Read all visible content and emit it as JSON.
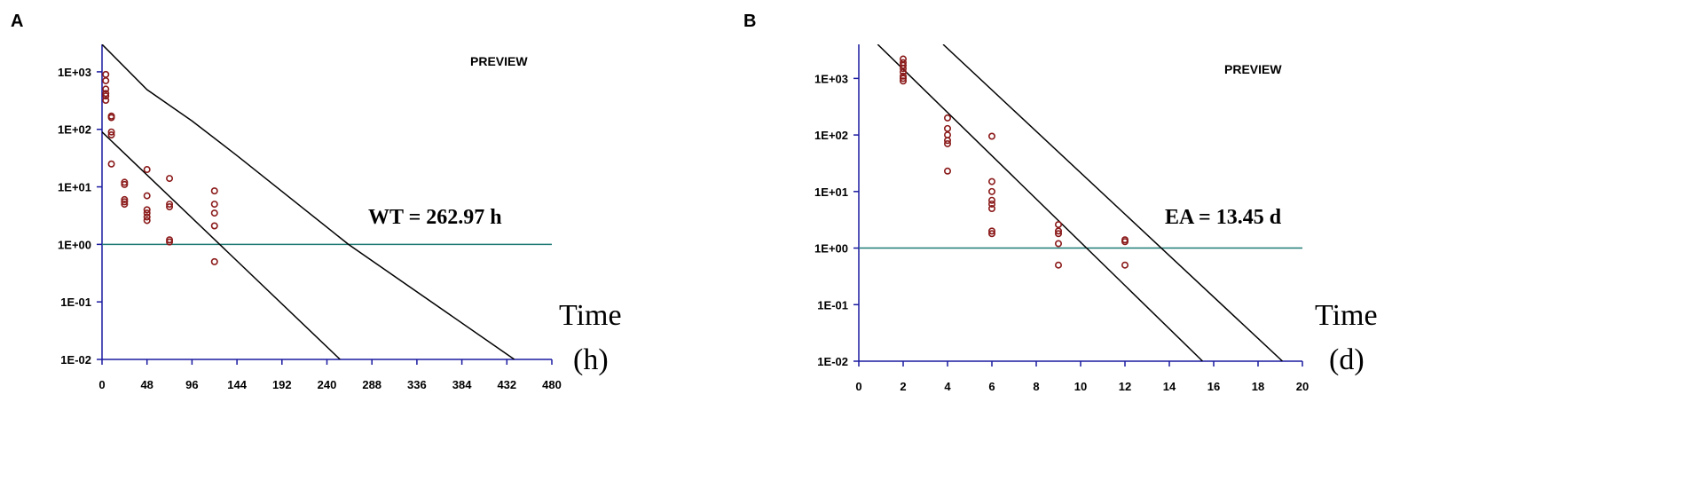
{
  "chart_data": [
    {
      "type": "scatter",
      "panel": "A",
      "watermark": "PREVIEW",
      "annotation": "WT = 262.97 h",
      "xlabel": [
        "Time",
        "(h)"
      ],
      "xlim": [
        0,
        480
      ],
      "xticks": [
        0,
        48,
        96,
        144,
        192,
        240,
        288,
        336,
        384,
        432,
        480
      ],
      "ylim": [
        0.01,
        3000
      ],
      "yscale": "log",
      "yticks": [
        {
          "value": 0.01,
          "label": "1E-02"
        },
        {
          "value": 0.1,
          "label": "1E-01"
        },
        {
          "value": 1,
          "label": "1E+00"
        },
        {
          "value": 10,
          "label": "1E+01"
        },
        {
          "value": 100,
          "label": "1E+02"
        },
        {
          "value": 1000,
          "label": "1E+03"
        }
      ],
      "series": [
        {
          "color": "#8b1a1a",
          "x": [
            4,
            4,
            4,
            4,
            4,
            4,
            10,
            10,
            10,
            10,
            10,
            24,
            24,
            24,
            24,
            24,
            48,
            48,
            48,
            48,
            48,
            48,
            72,
            72,
            72,
            72,
            72,
            120,
            120,
            120,
            120,
            120
          ],
          "values": [
            900,
            700,
            500,
            420,
            380,
            320,
            170,
            160,
            90,
            80,
            25,
            12,
            11,
            6,
            5.5,
            5,
            20,
            7,
            4,
            3.5,
            3,
            2.6,
            14,
            5,
            4.5,
            1.2,
            1.1,
            8.5,
            5,
            3.5,
            2.1,
            0.5
          ]
        }
      ],
      "lines": [
        {
          "color": "#000000",
          "x": [
            0,
            48,
            96,
            144,
            262.97,
            440
          ],
          "values": [
            3000,
            490,
            140,
            35,
            1,
            0.01
          ]
        },
        {
          "color": "#000000",
          "x": [
            0,
            254
          ],
          "values": [
            90,
            0.01
          ]
        }
      ],
      "hline": {
        "value": 1,
        "color": "#1f7a74"
      }
    },
    {
      "type": "scatter",
      "panel": "B",
      "watermark": "PREVIEW",
      "annotation": "EA = 13.45 d",
      "xlabel": [
        "Time",
        "(d)"
      ],
      "xlim": [
        0,
        20
      ],
      "xticks": [
        0,
        2,
        4,
        6,
        8,
        10,
        12,
        14,
        16,
        18,
        20
      ],
      "ylim": [
        0.01,
        4000
      ],
      "yscale": "log",
      "yticks": [
        {
          "value": 0.01,
          "label": "1E-02"
        },
        {
          "value": 0.1,
          "label": "1E-01"
        },
        {
          "value": 1,
          "label": "1E+00"
        },
        {
          "value": 10,
          "label": "1E+01"
        },
        {
          "value": 100,
          "label": "1E+02"
        },
        {
          "value": 1000,
          "label": "1E+03"
        }
      ],
      "series": [
        {
          "color": "#8b1a1a",
          "x": [
            2,
            2,
            2,
            2,
            2,
            2,
            2,
            2,
            4,
            4,
            4,
            4,
            4,
            4,
            6,
            6,
            6,
            6,
            6,
            6,
            6,
            6,
            9,
            9,
            9,
            9,
            9,
            12,
            12,
            12
          ],
          "values": [
            2200,
            1900,
            1700,
            1500,
            1300,
            1100,
            1000,
            900,
            200,
            130,
            100,
            80,
            70,
            23,
            95,
            15,
            10,
            7,
            6,
            5,
            2,
            1.8,
            2.6,
            2,
            1.8,
            1.2,
            0.5,
            1.4,
            1.3,
            0.5
          ]
        }
      ],
      "lines": [
        {
          "color": "#000000",
          "x": [
            0.85,
            15.5
          ],
          "values": [
            4000,
            0.01
          ]
        },
        {
          "color": "#000000",
          "x": [
            3.8,
            19.1
          ],
          "values": [
            4000,
            0.01
          ]
        }
      ],
      "hline": {
        "value": 1,
        "color": "#1f7a74"
      }
    }
  ]
}
